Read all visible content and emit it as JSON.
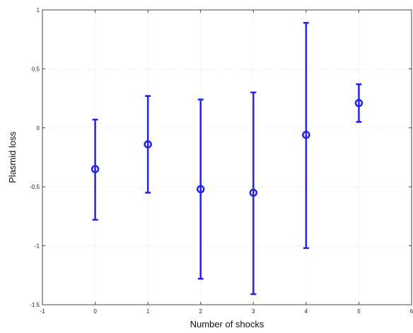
{
  "chart_data": {
    "type": "scatter",
    "title": "",
    "xlabel": "Number of shocks",
    "ylabel": "Plasmid loss",
    "xlim": [
      -1,
      6
    ],
    "ylim": [
      -1.5,
      1
    ],
    "x_ticks": [
      "-1",
      "0",
      "1",
      "2",
      "3",
      "4",
      "5",
      "6"
    ],
    "y_ticks": [
      "-1.5",
      "-1",
      "-0.5",
      "0",
      "0.5",
      "1"
    ],
    "grid": true,
    "series": [
      {
        "color": "#2222ee",
        "marker": "circle",
        "points": [
          {
            "x": 0,
            "y": -0.35,
            "lower": -0.78,
            "upper": 0.07
          },
          {
            "x": 1,
            "y": -0.14,
            "lower": -0.55,
            "upper": 0.27
          },
          {
            "x": 2,
            "y": -0.52,
            "lower": -1.28,
            "upper": 0.24
          },
          {
            "x": 3,
            "y": -0.55,
            "lower": -1.41,
            "upper": 0.3
          },
          {
            "x": 4,
            "y": -0.06,
            "lower": -1.02,
            "upper": 0.89
          },
          {
            "x": 5,
            "y": 0.21,
            "lower": 0.05,
            "upper": 0.37
          }
        ]
      }
    ]
  }
}
